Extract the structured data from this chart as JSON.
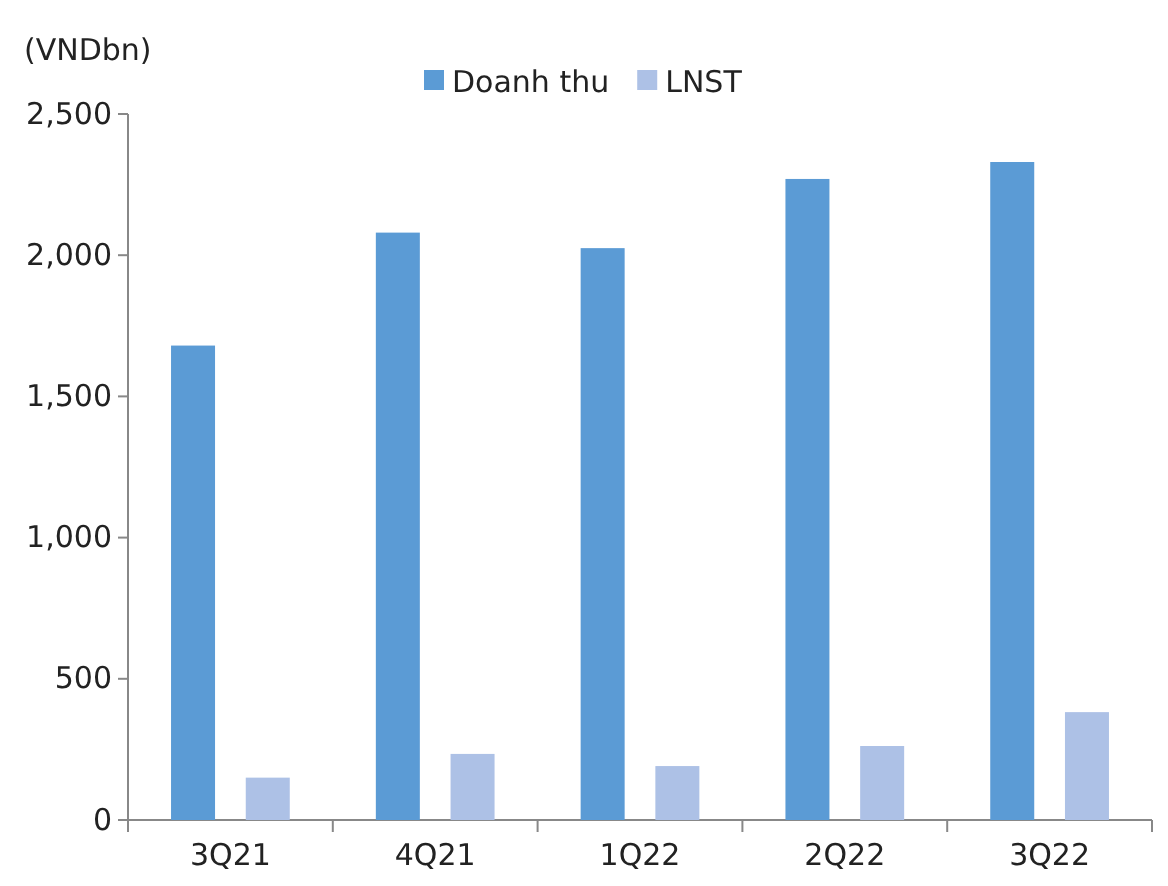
{
  "chart_data": {
    "type": "bar",
    "ylabel": "(VNDbn)",
    "categories": [
      "3Q21",
      "4Q21",
      "1Q22",
      "2Q22",
      "3Q22"
    ],
    "series": [
      {
        "name": "Doanh thu",
        "color": "#5b9bd5",
        "values": [
          1680,
          2080,
          2025,
          2270,
          2330
        ]
      },
      {
        "name": "LNST",
        "color": "#adc1e6",
        "values": [
          150,
          234,
          191,
          262,
          382
        ]
      }
    ],
    "ylim": [
      0,
      2500
    ],
    "yticks": [
      {
        "value": 0,
        "label": "0"
      },
      {
        "value": 500,
        "label": "500"
      },
      {
        "value": 1000,
        "label": "1,000"
      },
      {
        "value": 1500,
        "label": "1,500"
      },
      {
        "value": 2000,
        "label": "2,000"
      },
      {
        "value": 2500,
        "label": "2,500"
      }
    ],
    "grid": false,
    "legend": "top"
  }
}
